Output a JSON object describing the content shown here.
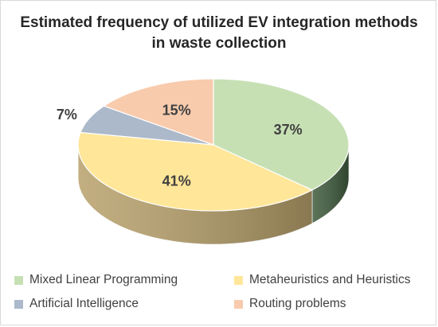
{
  "chart_data": {
    "type": "pie",
    "title_lines": [
      "Estimated frequency of utilized EV integration methods",
      "in waste collection"
    ],
    "slices": [
      {
        "name": "Mixed Linear Programming",
        "value": 37,
        "label": "37%",
        "color": "#c6e0b4",
        "side_color": "#3e5a3c"
      },
      {
        "name": "Metaheuristics and Heuristics",
        "value": 41,
        "label": "41%",
        "color": "#ffe699",
        "side_color": "#b7a06a"
      },
      {
        "name": "Artificial Intelligence",
        "value": 7,
        "label": "7%",
        "color": "#acb9ca",
        "side_color": "#6b7a8c"
      },
      {
        "name": "Routing problems",
        "value": 15,
        "label": "15%",
        "color": "#f8cbad",
        "side_color": "#b08670"
      }
    ],
    "start_angle_deg": -90,
    "direction": "clockwise",
    "style": "3d",
    "legend_position": "bottom"
  }
}
